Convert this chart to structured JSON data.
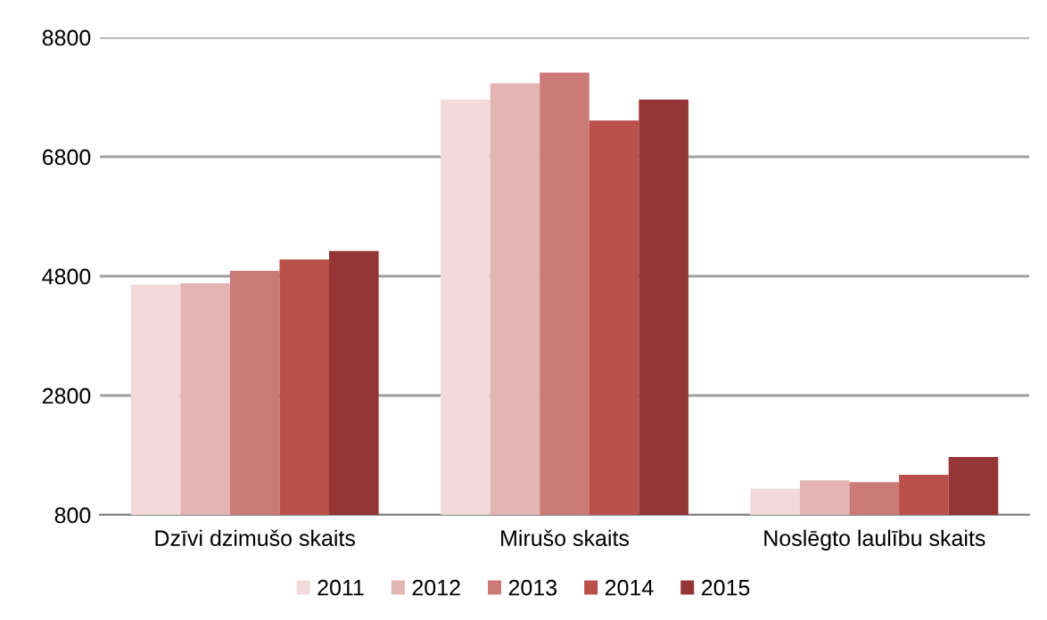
{
  "chart_data": {
    "type": "bar",
    "categories": [
      "Dzīvi dzimušo skaits",
      "Mirušo skaits",
      "Noslēgto laulību skaits"
    ],
    "series": [
      {
        "name": "2011",
        "color": "#f2d9dc",
        "values": [
          4660,
          7760,
          1240
        ]
      },
      {
        "name": "2012",
        "color": "#e2b4b3",
        "values": [
          4680,
          8030,
          1380
        ]
      },
      {
        "name": "2013",
        "color": "#cc7a78",
        "values": [
          4890,
          8210,
          1350
        ]
      },
      {
        "name": "2014",
        "color": "#b9504a",
        "values": [
          5080,
          7410,
          1470
        ]
      },
      {
        "name": "2015",
        "color": "#953535",
        "values": [
          5220,
          7760,
          1770
        ]
      }
    ],
    "ylim": [
      800,
      8800
    ],
    "yticks": [
      800,
      2800,
      4800,
      6800,
      8800
    ],
    "grid": "y",
    "legend": "bottom"
  }
}
